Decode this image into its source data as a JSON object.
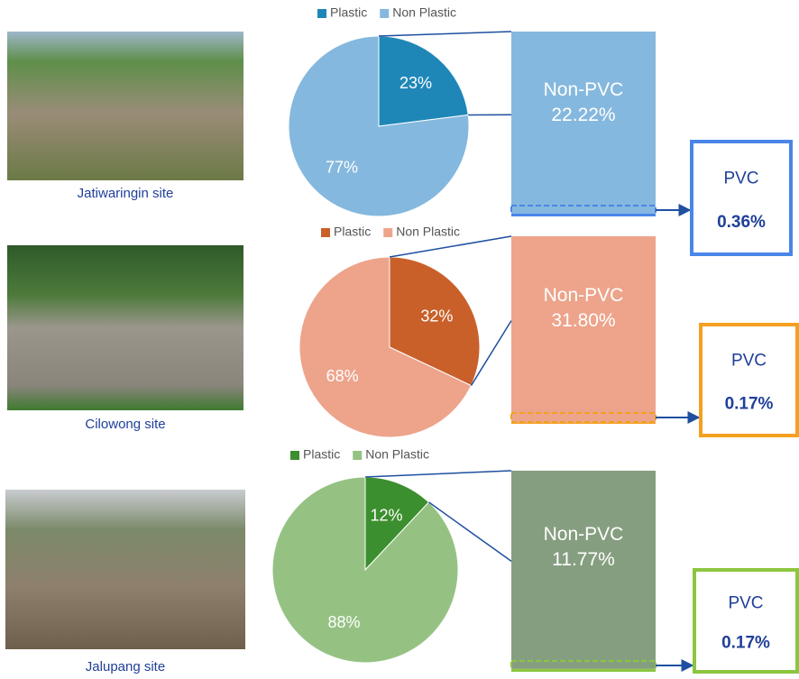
{
  "chart_data": [
    {
      "type": "pie",
      "site": "Jatiwaringin site",
      "categories": [
        "Plastic",
        "Non Plastic"
      ],
      "values": [
        23,
        77
      ],
      "value_labels": [
        "23%",
        "77%"
      ],
      "colors": [
        "#1f87b8",
        "#85b8de"
      ],
      "breakdown": {
        "categories": [
          "Non-PVC",
          "PVC"
        ],
        "values": [
          22.22,
          0.36
        ],
        "value_labels": [
          "22.22%",
          "0.36%"
        ],
        "color": "#85b8de",
        "highlight_color": "#4a86e8"
      }
    },
    {
      "type": "pie",
      "site": "Cilowong site",
      "categories": [
        "Plastic",
        "Non Plastic"
      ],
      "values": [
        32,
        68
      ],
      "value_labels": [
        "32%",
        "68%"
      ],
      "colors": [
        "#c9602a",
        "#eda48b"
      ],
      "breakdown": {
        "categories": [
          "Non-PVC",
          "PVC"
        ],
        "values": [
          31.8,
          0.17
        ],
        "value_labels": [
          "31.80%",
          "0.17%"
        ],
        "color": "#eda48b",
        "highlight_color": "#f4a020"
      }
    },
    {
      "type": "pie",
      "site": "Jalupang site",
      "categories": [
        "Plastic",
        "Non Plastic"
      ],
      "values": [
        12,
        88
      ],
      "value_labels": [
        "12%",
        "88%"
      ],
      "colors": [
        "#3c8f2e",
        "#95c283"
      ],
      "breakdown": {
        "categories": [
          "Non-PVC",
          "PVC"
        ],
        "values": [
          11.77,
          0.17
        ],
        "value_labels": [
          "11.77%",
          "0.17%"
        ],
        "color": "#869e80",
        "highlight_color": "#8cc63f"
      }
    }
  ]
}
